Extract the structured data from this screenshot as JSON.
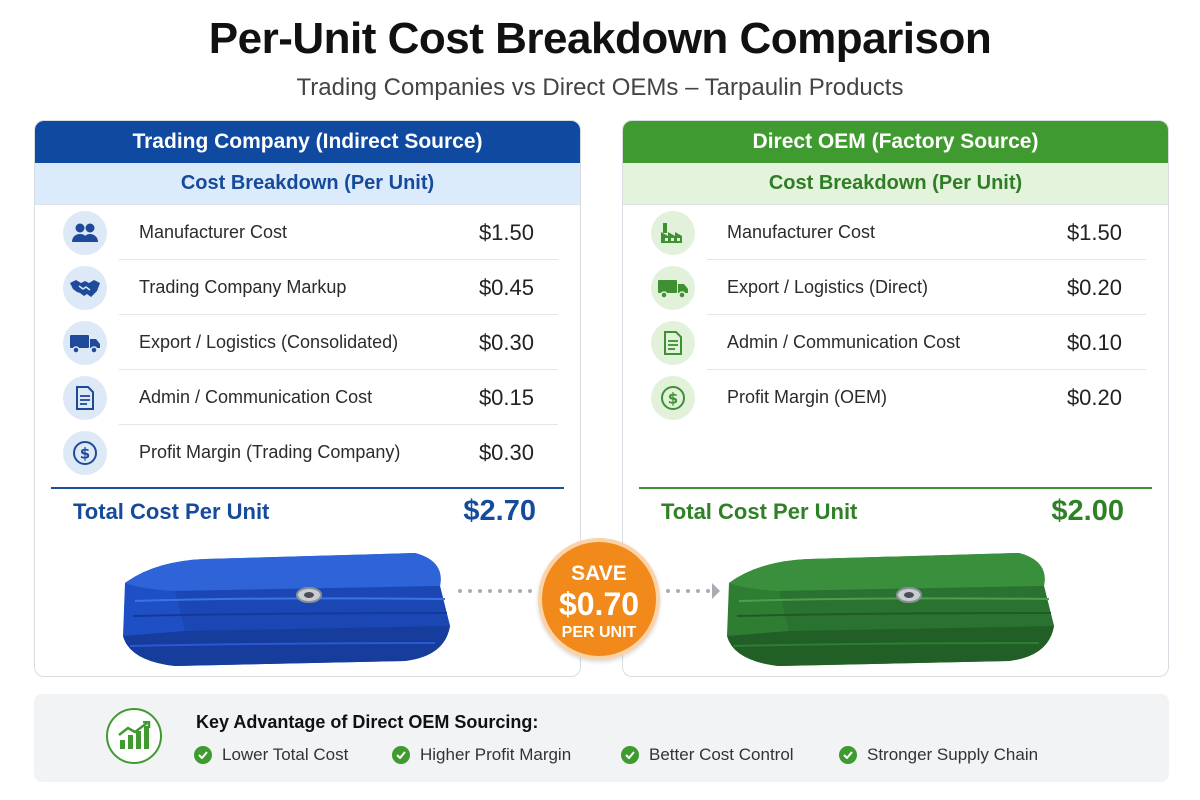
{
  "title": "Per-Unit Cost Breakdown Comparison",
  "subtitle": "Trading Companies vs Direct OEMs – Tarpaulin Products",
  "left": {
    "header": "Trading Company (Indirect Source)",
    "subheader": "Cost Breakdown (Per Unit)",
    "rows": [
      {
        "icon": "people-icon",
        "label": "Manufacturer Cost",
        "value": "$1.50"
      },
      {
        "icon": "handshake-icon",
        "label": "Trading Company Markup",
        "value": "$0.45"
      },
      {
        "icon": "truck-icon",
        "label": "Export / Logistics (Consolidated)",
        "value": "$0.30"
      },
      {
        "icon": "document-icon",
        "label": "Admin / Communication Cost",
        "value": "$0.15"
      },
      {
        "icon": "dollar-icon",
        "label": "Profit Margin (Trading Company)",
        "value": "$0.30"
      }
    ],
    "total_label": "Total Cost Per Unit",
    "total_value": "$2.70",
    "accent": "#0f4aa0",
    "tarp_color": "#1f4fc4"
  },
  "right": {
    "header": "Direct OEM (Factory Source)",
    "subheader": "Cost Breakdown (Per Unit)",
    "rows": [
      {
        "icon": "factory-icon",
        "label": "Manufacturer Cost",
        "value": "$1.50"
      },
      {
        "icon": "truck-icon",
        "label": "Export / Logistics (Direct)",
        "value": "$0.20"
      },
      {
        "icon": "document-icon",
        "label": "Admin / Communication Cost",
        "value": "$0.10"
      },
      {
        "icon": "dollar-icon",
        "label": "Profit Margin (OEM)",
        "value": "$0.20"
      }
    ],
    "total_label": "Total Cost Per Unit",
    "total_value": "$2.00",
    "accent": "#3f9a2f",
    "tarp_color": "#2e7d32"
  },
  "savings": {
    "line1": "SAVE",
    "amount": "$0.70",
    "line3": "PER UNIT",
    "color": "#f28a1b"
  },
  "advantages": {
    "title": "Key Advantage of Direct OEM Sourcing:",
    "icon": "growth-chart-icon",
    "items": [
      "Lower Total Cost",
      "Higher Profit Margin",
      "Better Cost Control",
      "Stronger Supply Chain"
    ]
  }
}
